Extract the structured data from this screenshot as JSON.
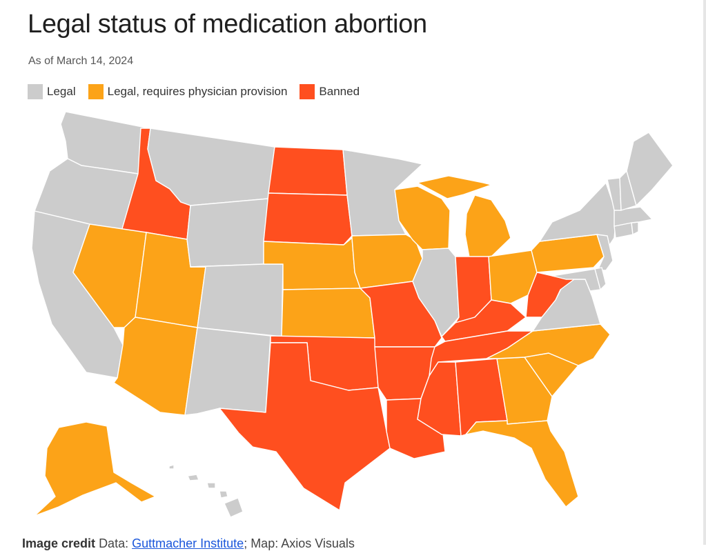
{
  "title": "Legal status of medication abortion",
  "subtitle": "As of March 14, 2024",
  "legend": [
    {
      "label": "Legal",
      "status": "legal"
    },
    {
      "label": "Legal, requires physician provision",
      "status": "physician"
    },
    {
      "label": "Banned",
      "status": "banned"
    }
  ],
  "colors": {
    "legal": "#cccccc",
    "physician": "#fca318",
    "banned": "#ff4f1f"
  },
  "states": {
    "WA": "legal",
    "OR": "legal",
    "CA": "legal",
    "ID": "banned",
    "NV": "physician",
    "UT": "physician",
    "AZ": "physician",
    "MT": "legal",
    "WY": "legal",
    "CO": "legal",
    "NM": "legal",
    "ND": "banned",
    "SD": "banned",
    "NE": "physician",
    "KS": "physician",
    "OK": "banned",
    "TX": "banned",
    "MN": "legal",
    "IA": "physician",
    "MO": "banned",
    "AR": "banned",
    "LA": "banned",
    "WI": "physician",
    "IL": "legal",
    "MI": "physician",
    "IN": "banned",
    "OH": "physician",
    "KY": "banned",
    "TN": "banned",
    "MS": "banned",
    "AL": "banned",
    "GA": "physician",
    "FL": "physician",
    "SC": "physician",
    "NC": "physician",
    "VA": "legal",
    "WV": "banned",
    "PA": "physician",
    "NY": "legal",
    "NJ": "legal",
    "DE": "legal",
    "MD": "legal",
    "CT": "legal",
    "RI": "legal",
    "MA": "legal",
    "VT": "legal",
    "NH": "legal",
    "ME": "legal",
    "AK": "physician",
    "HI": "legal"
  },
  "credit": {
    "label": "Image credit",
    "prefix": "Data:",
    "source": "Guttmacher Institute",
    "suffix": "; Map: Axios Visuals"
  }
}
